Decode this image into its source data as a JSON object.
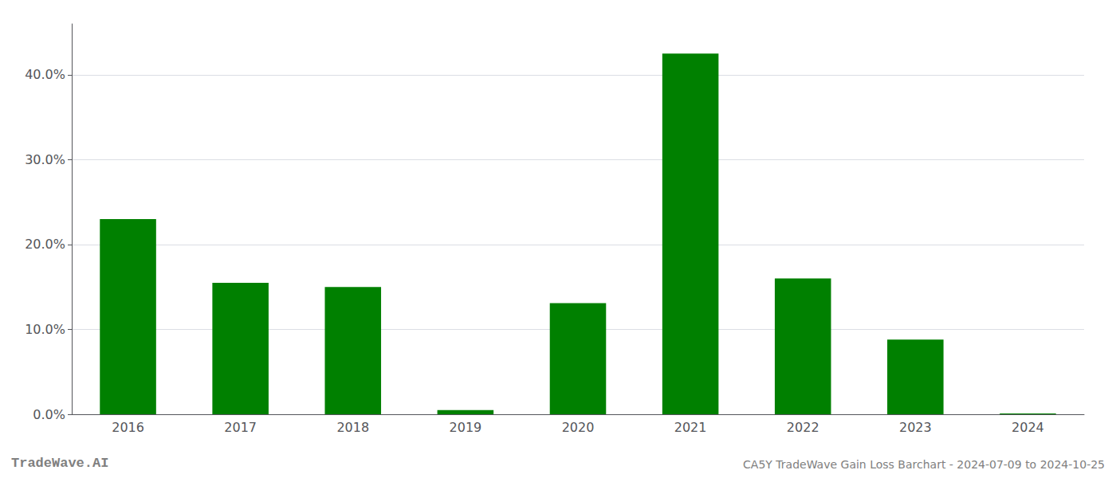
{
  "chart_data": {
    "type": "bar",
    "categories": [
      "2016",
      "2017",
      "2018",
      "2019",
      "2020",
      "2021",
      "2022",
      "2023",
      "2024"
    ],
    "values": [
      0.23,
      0.155,
      0.15,
      0.005,
      0.131,
      0.425,
      0.16,
      0.088,
      0.001
    ],
    "color": "#008000",
    "ylim": [
      0,
      0.46
    ],
    "yticks": [
      {
        "value": 0.0,
        "label": "0.0%"
      },
      {
        "value": 0.1,
        "label": "10.0%"
      },
      {
        "value": 0.2,
        "label": "20.0%"
      },
      {
        "value": 0.3,
        "label": "30.0%"
      },
      {
        "value": 0.4,
        "label": "40.0%"
      }
    ],
    "grid": true,
    "annotations": [
      "TradeWave.AI",
      "CA5Y TradeWave Gain Loss Barchart - 2024-07-09 to 2024-10-25"
    ]
  }
}
